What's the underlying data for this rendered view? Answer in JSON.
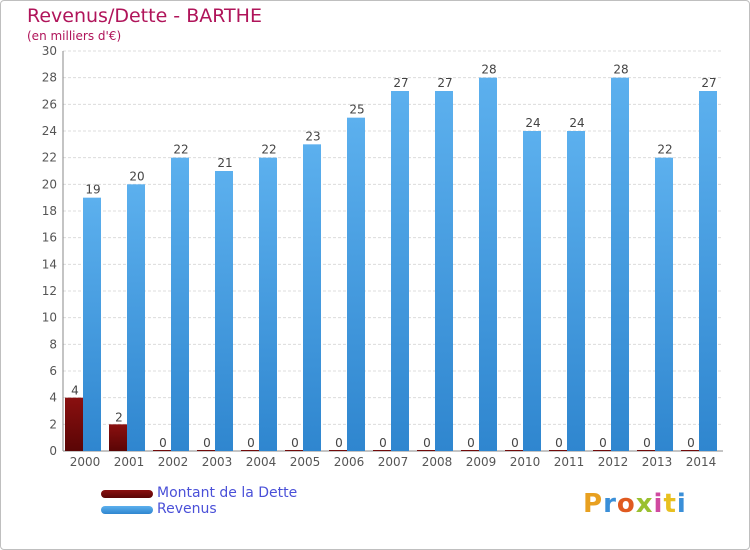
{
  "chart_data": {
    "type": "bar",
    "title": "Revenus/Dette - BARTHE",
    "subtitle": "(en milliers d'€)",
    "categories": [
      "2000",
      "2001",
      "2002",
      "2003",
      "2004",
      "2005",
      "2006",
      "2007",
      "2008",
      "2009",
      "2010",
      "2011",
      "2012",
      "2013",
      "2014"
    ],
    "series": [
      {
        "name": "Montant de la Dette",
        "values": [
          4,
          2,
          0,
          0,
          0,
          0,
          0,
          0,
          0,
          0,
          0,
          0,
          0,
          0,
          0
        ],
        "color": "#7a0a0a"
      },
      {
        "name": "Revenus",
        "values": [
          19,
          20,
          22,
          21,
          22,
          23,
          25,
          27,
          27,
          28,
          24,
          24,
          28,
          22,
          27
        ],
        "color": "#4ea3e3"
      }
    ],
    "ylim": [
      0,
      30
    ],
    "yticks": [
      0,
      2,
      4,
      6,
      8,
      10,
      12,
      14,
      16,
      18,
      20,
      22,
      24,
      26,
      28,
      30
    ],
    "grid": true,
    "legend_position": "bottom-left"
  },
  "branding": {
    "logo_text": "Proxiti",
    "logo_colors": [
      "#e8a020",
      "#3a8fd8",
      "#e05a20",
      "#9ac030",
      "#d04aa0",
      "#e8c020",
      "#3a8fd8"
    ]
  }
}
